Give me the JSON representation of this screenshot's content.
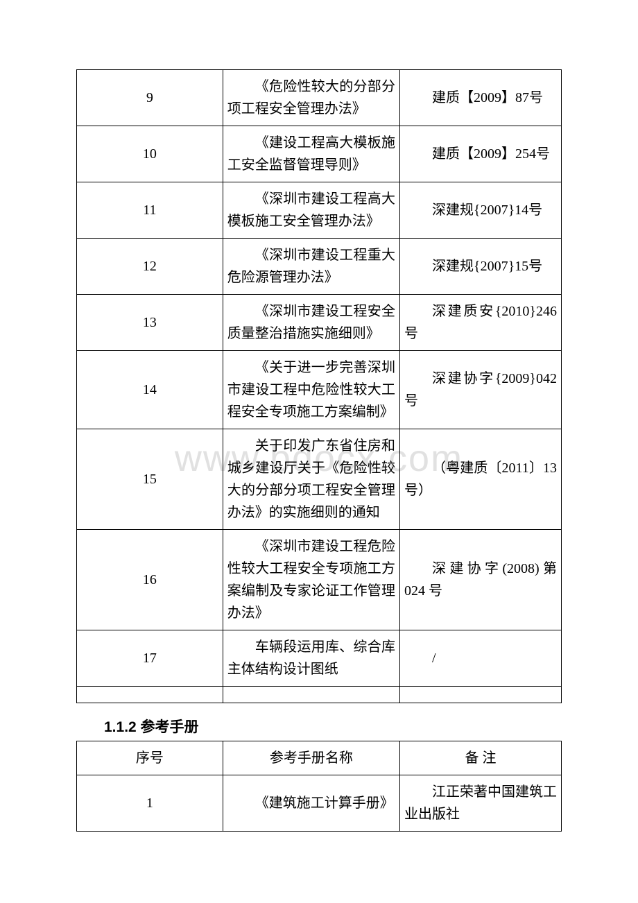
{
  "watermark": "www.bdocx.com",
  "table1": {
    "rows": [
      {
        "num": "9",
        "name": "《危险性较大的分部分项工程安全管理办法》",
        "code": "建质【2009】87号"
      },
      {
        "num": "10",
        "name": "《建设工程高大模板施工安全监督管理导则》",
        "code": "建质【2009】254号"
      },
      {
        "num": "11",
        "name": "《深圳市建设工程高大模板施工安全管理办法》",
        "code": "深建规{2007}14号"
      },
      {
        "num": "12",
        "name": "《深圳市建设工程重大危险源管理办法》",
        "code": "深建规{2007}15号"
      },
      {
        "num": "13",
        "name": "《深圳市建设工程安全质量整治措施实施细则》",
        "code": "深建质安{2010}246 号"
      },
      {
        "num": "14",
        "name": "《关于进一步完善深圳市建设工程中危险性较大工程安全专项施工方案编制》",
        "code": "深建协字{2009}042 号"
      },
      {
        "num": "15",
        "name": "关于印发广东省住房和城乡建设厅关于《危险性较大的分部分项工程安全管理办法》的实施细则的通知",
        "code": "（粤建质〔2011〕13 号）"
      },
      {
        "num": "16",
        "name": "《深圳市建设工程危险性较大工程安全专项施工方案编制及专家论证工作管理办法》",
        "code": "深建协字(2008)第024 号"
      },
      {
        "num": "17",
        "name": "车辆段运用库、综合库主体结构设计图纸",
        "code": "/"
      }
    ]
  },
  "section_heading": "1.1.2 参考手册",
  "table2": {
    "headers": {
      "num": "序号",
      "name": "参考手册名称",
      "code": "备 注"
    },
    "rows": [
      {
        "num": "1",
        "name": "《建筑施工计算手册》",
        "code": "江正荣著中国建筑工业出版社"
      }
    ]
  }
}
